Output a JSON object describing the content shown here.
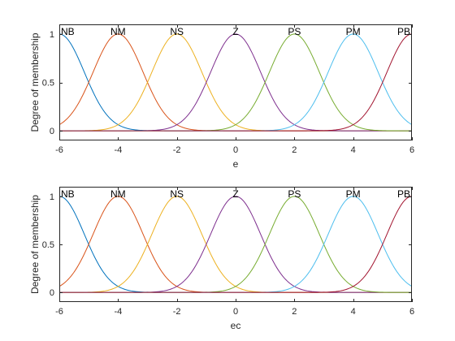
{
  "chart_data": [
    {
      "type": "line",
      "title": "",
      "xlabel": "e",
      "ylabel": "Degree of membership",
      "xlim": [
        -6,
        6
      ],
      "ylim": [
        -0.1,
        1.1
      ],
      "xticks": [
        "-6",
        "-4",
        "-2",
        "0",
        "2",
        "4",
        "6"
      ],
      "yticks": [
        "0",
        "0.5",
        "1"
      ],
      "grid": false,
      "membership_function": "gaussian",
      "sigma": 0.85,
      "series": [
        {
          "name": "NB",
          "center": -6,
          "color": "#0072BD"
        },
        {
          "name": "NM",
          "center": -4,
          "color": "#D95319"
        },
        {
          "name": "NS",
          "center": -2,
          "color": "#EDB120"
        },
        {
          "name": "Z",
          "center": 0,
          "color": "#7E2F8E"
        },
        {
          "name": "PS",
          "center": 2,
          "color": "#77AC30"
        },
        {
          "name": "PM",
          "center": 4,
          "color": "#4DBEEE"
        },
        {
          "name": "PB",
          "center": 6,
          "color": "#A2142F"
        }
      ]
    },
    {
      "type": "line",
      "title": "",
      "xlabel": "ec",
      "ylabel": "Degree of membership",
      "xlim": [
        -6,
        6
      ],
      "ylim": [
        -0.1,
        1.1
      ],
      "xticks": [
        "-6",
        "-4",
        "-2",
        "0",
        "2",
        "4",
        "6"
      ],
      "yticks": [
        "0",
        "0.5",
        "1"
      ],
      "grid": false,
      "membership_function": "gaussian",
      "sigma": 0.85,
      "series": [
        {
          "name": "NB",
          "center": -6,
          "color": "#0072BD"
        },
        {
          "name": "NM",
          "center": -4,
          "color": "#D95319"
        },
        {
          "name": "NS",
          "center": -2,
          "color": "#EDB120"
        },
        {
          "name": "Z",
          "center": 0,
          "color": "#7E2F8E"
        },
        {
          "name": "PS",
          "center": 2,
          "color": "#77AC30"
        },
        {
          "name": "PM",
          "center": 4,
          "color": "#4DBEEE"
        },
        {
          "name": "PB",
          "center": 6,
          "color": "#A2142F"
        }
      ]
    }
  ]
}
